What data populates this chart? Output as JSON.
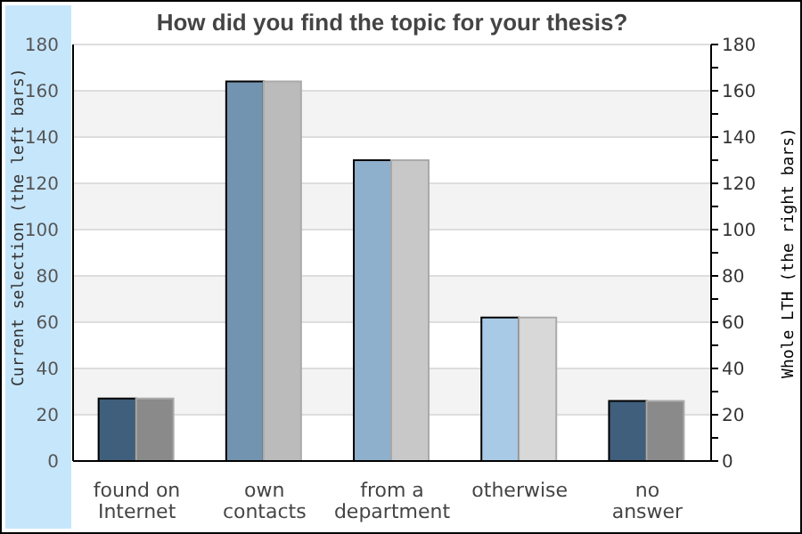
{
  "chart_data": {
    "type": "bar",
    "title": "How did you find the topic for your thesis?",
    "ylabel": "Current selection (the left bars)",
    "y2label": "Whole LTH (the right bars)",
    "categories": [
      "found on Internet",
      "own contacts",
      "from a department",
      "otherwise",
      "no answer"
    ],
    "series": [
      {
        "values": [
          27,
          164,
          130,
          62,
          26
        ],
        "colors": [
          "#3f5f7c",
          "#7394b0",
          "#8fb0cc",
          "#a9cae6",
          "#3f5f7c"
        ],
        "axis": "y"
      },
      {
        "values": [
          27,
          164,
          130,
          62,
          26
        ],
        "colors": [
          "#8a8a8a",
          "#bbbbbb",
          "#c8c8c8",
          "#d8d8d8",
          "#8a8a8a"
        ],
        "axis": "y2"
      }
    ],
    "ylim": [
      0,
      180
    ],
    "yticks": [
      0,
      20,
      40,
      60,
      80,
      100,
      120,
      140,
      160,
      180
    ],
    "y2lim": [
      0,
      180
    ],
    "y2ticks": [
      0,
      {
        "value": 10,
        "label": null
      },
      20,
      {
        "value": 30,
        "label": null
      },
      40,
      {
        "value": 50,
        "label": null
      },
      60,
      {
        "value": 70,
        "label": null
      },
      80,
      {
        "value": 90,
        "label": null
      },
      100,
      {
        "value": 110,
        "label": null
      },
      120,
      {
        "value": 130,
        "label": null
      },
      140,
      {
        "value": 150,
        "label": null
      },
      160,
      {
        "value": 170,
        "label": null
      },
      180
    ],
    "grid": "y",
    "legend": false
  }
}
